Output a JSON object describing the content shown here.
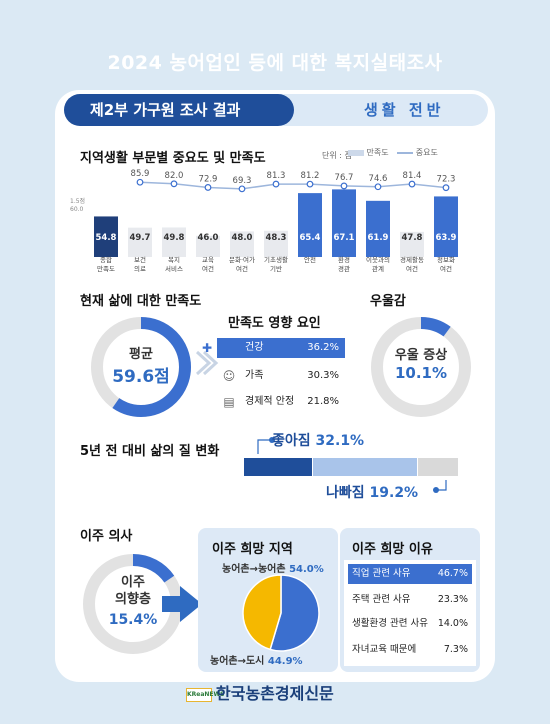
{
  "page_title": "2024 농어업인 등에 대한 복지실태조사",
  "header": {
    "part": "제2부 가구원 조사 결과",
    "topic": "생활 전반"
  },
  "section1": {
    "title": "지역생활 부문별 중요도 및 만족도",
    "unit": "단위 : 점",
    "legend_satisfaction": "만족도",
    "legend_importance": "중요도",
    "ref_labels": [
      "1.5점",
      "60.0"
    ]
  },
  "section2": {
    "title": "현재 삶에 대한 만족도",
    "avg_label": "평균",
    "avg_value": "59.6점",
    "avg_ratio": 0.596,
    "factors_title": "만족도 영향 요인",
    "factors": [
      {
        "label": "건강",
        "value": "36.2%",
        "icon": "health-icon"
      },
      {
        "label": "가족",
        "value": "30.3%",
        "icon": "family-icon"
      },
      {
        "label": "경제적 안정",
        "value": "21.8%",
        "icon": "money-icon"
      }
    ]
  },
  "section3": {
    "title": "우울감",
    "label": "우울 증상",
    "value": "10.1%",
    "ratio": 0.101
  },
  "section4": {
    "title": "5년 전 대비 삶의 질 변화",
    "better_label": "좋아짐",
    "better_value": "32.1%",
    "worse_label": "나빠짐",
    "worse_value": "19.2%",
    "better_ratio": 0.321,
    "worse_ratio": 0.192
  },
  "section5": {
    "title": "이주 의사",
    "intent_label_1": "이주",
    "intent_label_2": "의향층",
    "intent_value": "15.4%",
    "intent_ratio": 0.154,
    "region_title": "이주 희망 지역",
    "to_rural_label": "농어촌→농어촌",
    "to_rural_value": "54.0%",
    "to_city_label": "농어촌→도시",
    "to_city_value": "44.9%",
    "reason_title": "이주 희망 이유",
    "reasons": [
      {
        "label": "직업 관련 사유",
        "value": "46.7%"
      },
      {
        "label": "주택 관련 사유",
        "value": "23.3%"
      },
      {
        "label": "생활환경 관련 사유",
        "value": "14.0%"
      },
      {
        "label": "자녀교육 때문에",
        "value": "7.3%"
      }
    ]
  },
  "footer_logo": "한국농촌경제신문",
  "footer_logo_badge": "KReaNEWS",
  "colors": {
    "navy": "#1f4e9a",
    "blue": "#3b6fcf",
    "lightblue": "#a9c4ea",
    "gray": "#d9d9d9",
    "yellow": "#f5b800"
  },
  "chart_data": [
    {
      "type": "bar",
      "title": "지역생활 부문별 중요도 및 만족도",
      "categories": [
        "종합 만족도",
        "보건 의료",
        "복지 서비스",
        "교육 여건",
        "문화·여가 여건",
        "기초생활 기반",
        "안전",
        "환경 경관",
        "이웃과의 관계",
        "경제활동 여건",
        "정보화 여건"
      ],
      "series": [
        {
          "name": "만족도",
          "values": [
            54.8,
            49.7,
            49.8,
            46.0,
            48.0,
            48.3,
            65.4,
            67.1,
            61.9,
            47.8,
            63.9
          ]
        },
        {
          "name": "중요도",
          "values": [
            null,
            85.9,
            82.0,
            72.9,
            69.3,
            81.3,
            81.2,
            76.7,
            74.6,
            81.4,
            72.3
          ]
        }
      ],
      "ylim": [
        0,
        100
      ]
    },
    {
      "type": "pie",
      "title": "이주 희망 지역",
      "categories": [
        "농어촌→농어촌",
        "농어촌→도시"
      ],
      "values": [
        54.0,
        44.9
      ]
    }
  ]
}
